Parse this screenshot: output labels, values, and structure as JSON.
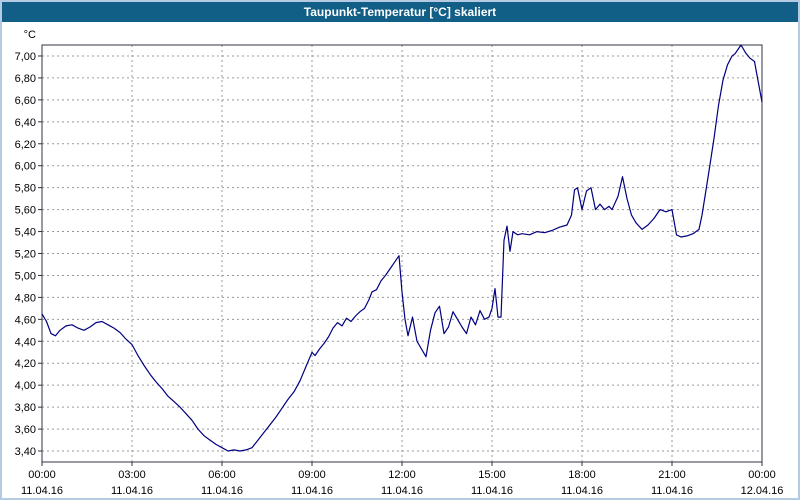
{
  "window": {
    "title": "Taupunkt-Temperatur [°C] skaliert"
  },
  "colors": {
    "title_bar": "#115e86",
    "outer_border": "#b5cbe3",
    "line": "#000080",
    "grid": "#999999",
    "frame": "#333344",
    "background": "#ffffff"
  },
  "chart_data": {
    "type": "line",
    "title": "Taupunkt-Temperatur [°C] skaliert",
    "xlabel": "",
    "ylabel": "°C",
    "y_axis_unit": "°C",
    "xlim": [
      0,
      24
    ],
    "ylim": [
      3.3,
      7.1
    ],
    "grid": "dashed",
    "legend": "none",
    "line_color": "#000080",
    "grid_color": "#999999",
    "frame_color": "#333344",
    "y_ticks": [
      {
        "value": 7.0,
        "label": "7,00"
      },
      {
        "value": 6.8,
        "label": "6,80"
      },
      {
        "value": 6.6,
        "label": "6,60"
      },
      {
        "value": 6.4,
        "label": "6,40"
      },
      {
        "value": 6.2,
        "label": "6,20"
      },
      {
        "value": 6.0,
        "label": "6,00"
      },
      {
        "value": 5.8,
        "label": "5,80"
      },
      {
        "value": 5.6,
        "label": "5,60"
      },
      {
        "value": 5.4,
        "label": "5,40"
      },
      {
        "value": 5.2,
        "label": "5,20"
      },
      {
        "value": 5.0,
        "label": "5,00"
      },
      {
        "value": 4.8,
        "label": "4,80"
      },
      {
        "value": 4.6,
        "label": "4,60"
      },
      {
        "value": 4.4,
        "label": "4,40"
      },
      {
        "value": 4.2,
        "label": "4,20"
      },
      {
        "value": 4.0,
        "label": "4,00"
      },
      {
        "value": 3.8,
        "label": "3,80"
      },
      {
        "value": 3.6,
        "label": "3,60"
      },
      {
        "value": 3.4,
        "label": "3,40"
      }
    ],
    "x_ticks": [
      {
        "value": 0,
        "time": "00:00",
        "date": "11.04.16"
      },
      {
        "value": 3,
        "time": "03:00",
        "date": "11.04.16"
      },
      {
        "value": 6,
        "time": "06:00",
        "date": "11.04.16"
      },
      {
        "value": 9,
        "time": "09:00",
        "date": "11.04.16"
      },
      {
        "value": 12,
        "time": "12:00",
        "date": "11.04.16"
      },
      {
        "value": 15,
        "time": "15:00",
        "date": "11.04.16"
      },
      {
        "value": 18,
        "time": "18:00",
        "date": "11.04.16"
      },
      {
        "value": 21,
        "time": "21:00",
        "date": "11.04.16"
      },
      {
        "value": 24,
        "time": "00:00",
        "date": "12.04.16"
      }
    ],
    "series": [
      {
        "name": "Taupunkt-Temperatur",
        "points": [
          [
            0,
            4.65
          ],
          [
            0.15,
            4.58
          ],
          [
            0.3,
            4.47
          ],
          [
            0.45,
            4.45
          ],
          [
            0.6,
            4.5
          ],
          [
            0.8,
            4.54
          ],
          [
            1,
            4.55
          ],
          [
            1.2,
            4.52
          ],
          [
            1.4,
            4.5
          ],
          [
            1.6,
            4.53
          ],
          [
            1.8,
            4.57
          ],
          [
            2,
            4.58
          ],
          [
            2.2,
            4.55
          ],
          [
            2.4,
            4.52
          ],
          [
            2.6,
            4.48
          ],
          [
            2.8,
            4.42
          ],
          [
            3,
            4.37
          ],
          [
            3.2,
            4.27
          ],
          [
            3.4,
            4.18
          ],
          [
            3.6,
            4.1
          ],
          [
            3.8,
            4.03
          ],
          [
            4,
            3.97
          ],
          [
            4.2,
            3.9
          ],
          [
            4.4,
            3.85
          ],
          [
            4.6,
            3.8
          ],
          [
            4.8,
            3.74
          ],
          [
            5,
            3.68
          ],
          [
            5.2,
            3.6
          ],
          [
            5.4,
            3.54
          ],
          [
            5.6,
            3.5
          ],
          [
            5.8,
            3.46
          ],
          [
            6,
            3.43
          ],
          [
            6.2,
            3.4
          ],
          [
            6.4,
            3.41
          ],
          [
            6.6,
            3.4
          ],
          [
            6.8,
            3.41
          ],
          [
            7,
            3.43
          ],
          [
            7.2,
            3.5
          ],
          [
            7.4,
            3.57
          ],
          [
            7.6,
            3.64
          ],
          [
            7.8,
            3.71
          ],
          [
            8,
            3.79
          ],
          [
            8.2,
            3.87
          ],
          [
            8.4,
            3.94
          ],
          [
            8.6,
            4.04
          ],
          [
            8.8,
            4.17
          ],
          [
            9,
            4.3
          ],
          [
            9.1,
            4.27
          ],
          [
            9.25,
            4.33
          ],
          [
            9.4,
            4.38
          ],
          [
            9.55,
            4.44
          ],
          [
            9.7,
            4.52
          ],
          [
            9.85,
            4.57
          ],
          [
            10,
            4.54
          ],
          [
            10.15,
            4.61
          ],
          [
            10.3,
            4.58
          ],
          [
            10.45,
            4.63
          ],
          [
            10.6,
            4.67
          ],
          [
            10.75,
            4.7
          ],
          [
            10.9,
            4.78
          ],
          [
            11,
            4.85
          ],
          [
            11.15,
            4.87
          ],
          [
            11.3,
            4.95
          ],
          [
            11.45,
            5.0
          ],
          [
            11.6,
            5.06
          ],
          [
            11.75,
            5.12
          ],
          [
            11.9,
            5.18
          ],
          [
            12,
            4.85
          ],
          [
            12.1,
            4.6
          ],
          [
            12.2,
            4.45
          ],
          [
            12.35,
            4.62
          ],
          [
            12.5,
            4.4
          ],
          [
            12.65,
            4.33
          ],
          [
            12.8,
            4.26
          ],
          [
            12.95,
            4.5
          ],
          [
            13.1,
            4.66
          ],
          [
            13.25,
            4.72
          ],
          [
            13.4,
            4.47
          ],
          [
            13.55,
            4.53
          ],
          [
            13.7,
            4.67
          ],
          [
            13.85,
            4.6
          ],
          [
            14,
            4.53
          ],
          [
            14.15,
            4.47
          ],
          [
            14.3,
            4.62
          ],
          [
            14.45,
            4.55
          ],
          [
            14.6,
            4.68
          ],
          [
            14.75,
            4.6
          ],
          [
            14.9,
            4.62
          ],
          [
            15,
            4.7
          ],
          [
            15.1,
            4.88
          ],
          [
            15.2,
            4.62
          ],
          [
            15.3,
            4.62
          ],
          [
            15.4,
            5.32
          ],
          [
            15.5,
            5.45
          ],
          [
            15.6,
            5.22
          ],
          [
            15.7,
            5.4
          ],
          [
            15.85,
            5.37
          ],
          [
            16,
            5.38
          ],
          [
            16.25,
            5.37
          ],
          [
            16.5,
            5.4
          ],
          [
            16.75,
            5.39
          ],
          [
            17,
            5.41
          ],
          [
            17.25,
            5.44
          ],
          [
            17.5,
            5.46
          ],
          [
            17.65,
            5.55
          ],
          [
            17.75,
            5.78
          ],
          [
            17.85,
            5.8
          ],
          [
            18,
            5.6
          ],
          [
            18.15,
            5.77
          ],
          [
            18.3,
            5.8
          ],
          [
            18.45,
            5.6
          ],
          [
            18.6,
            5.65
          ],
          [
            18.75,
            5.6
          ],
          [
            18.9,
            5.63
          ],
          [
            19,
            5.6
          ],
          [
            19.2,
            5.72
          ],
          [
            19.35,
            5.9
          ],
          [
            19.5,
            5.7
          ],
          [
            19.65,
            5.55
          ],
          [
            19.8,
            5.48
          ],
          [
            20,
            5.42
          ],
          [
            20.2,
            5.46
          ],
          [
            20.4,
            5.52
          ],
          [
            20.6,
            5.6
          ],
          [
            20.8,
            5.58
          ],
          [
            21,
            5.6
          ],
          [
            21.15,
            5.37
          ],
          [
            21.3,
            5.35
          ],
          [
            21.5,
            5.36
          ],
          [
            21.7,
            5.38
          ],
          [
            21.9,
            5.42
          ],
          [
            22,
            5.55
          ],
          [
            22.1,
            5.72
          ],
          [
            22.25,
            5.98
          ],
          [
            22.4,
            6.25
          ],
          [
            22.55,
            6.55
          ],
          [
            22.7,
            6.78
          ],
          [
            22.85,
            6.92
          ],
          [
            23,
            7.0
          ],
          [
            23.1,
            7.02
          ],
          [
            23.2,
            7.06
          ],
          [
            23.3,
            7.1
          ],
          [
            23.45,
            7.03
          ],
          [
            23.6,
            6.98
          ],
          [
            23.75,
            6.95
          ],
          [
            23.85,
            6.8
          ],
          [
            24,
            6.58
          ]
        ]
      }
    ]
  }
}
